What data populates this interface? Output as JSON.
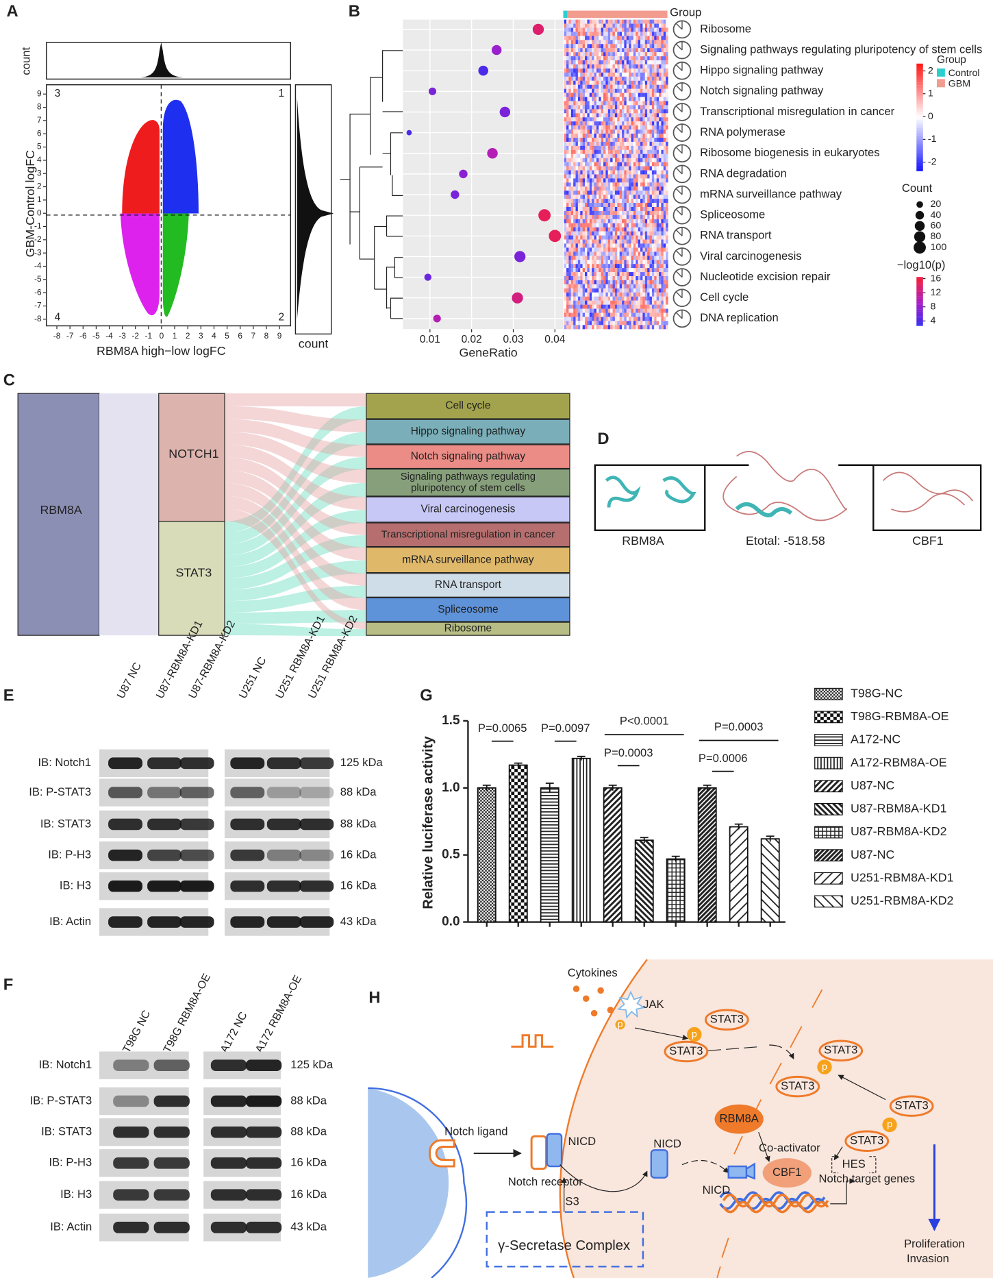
{
  "figure": {
    "panel_labels": [
      "A",
      "B",
      "C",
      "D",
      "E",
      "F",
      "G",
      "H"
    ]
  },
  "panel_a": {
    "type": "scatter",
    "xlabel": "RBM8A high−low logFC",
    "ylabel": "GBM-Control logFC",
    "top_hist_label": "count",
    "right_hist_label": "count",
    "quadrants": [
      "3",
      "1",
      "4",
      "2"
    ],
    "xlim": [
      -8.8,
      9.85
    ],
    "ylim": [
      -8.5,
      9.7
    ],
    "xticks": [
      -8,
      -7,
      -6,
      -5,
      -4,
      -3,
      -2,
      -1,
      0,
      1,
      2,
      3,
      4,
      5,
      6,
      7,
      8,
      9
    ],
    "yticks": [
      -8,
      -7,
      -6,
      -5,
      -4,
      -3,
      -2,
      -1,
      0,
      1,
      2,
      3,
      4,
      5,
      6,
      7,
      8,
      9
    ]
  },
  "panel_b": {
    "type": "scatter",
    "group_bar_label": "Group",
    "pathways": [
      "Ribosome",
      "Signaling pathways regulating pluripotency of stem cells",
      "Hippo signaling pathway",
      "Notch signaling pathway",
      "Transcriptional misregulation in cancer",
      "RNA polymerase",
      "Ribosome biogenesis in eukaryotes",
      "RNA degradation",
      "mRNA surveillance pathway",
      "Spliceosome",
      "RNA transport",
      "Viral carcinogenesis",
      "Nucleotide excision repair",
      "Cell cycle",
      "DNA replication"
    ],
    "gene_ratio": [
      0.036,
      0.026,
      0.0228,
      0.0106,
      0.028,
      0.005,
      0.025,
      0.018,
      0.016,
      0.0375,
      0.04,
      0.0316,
      0.0095,
      0.031,
      0.0117
    ],
    "counts": [
      80,
      60,
      60,
      30,
      70,
      10,
      70,
      40,
      40,
      100,
      100,
      80,
      25,
      80,
      30
    ],
    "neg_log10_p": [
      14,
      8,
      3,
      6,
      6,
      3,
      10,
      7,
      6,
      15,
      15,
      6,
      5,
      13,
      10
    ],
    "xlim": [
      0.0035,
      0.042
    ],
    "xticks": [
      0.01,
      0.02,
      0.03,
      0.04
    ],
    "xlabel": "GeneRatio",
    "legend": {
      "group_title": "Group",
      "groups": [
        {
          "name": "Control",
          "color": "#2ccfcf"
        },
        {
          "name": "GBM",
          "color": "#f29b8f"
        }
      ],
      "heat_ticks": [
        2,
        1,
        0,
        -1,
        -2
      ],
      "count_title": "Count",
      "count_ticks": [
        20,
        40,
        60,
        80,
        100
      ],
      "p_title": "−log10(p)",
      "p_ticks": [
        16,
        12,
        8,
        4
      ]
    }
  },
  "panel_c": {
    "source": "RBM8A",
    "genes": [
      "NOTCH1",
      "STAT3"
    ],
    "pathways": [
      {
        "name": "Cell cycle",
        "color": "#a3a34d"
      },
      {
        "name": "Hippo signaling pathway",
        "color": "#7aafb9"
      },
      {
        "name": "Notch signaling pathway",
        "color": "#eb8c86"
      },
      {
        "name": "Signaling pathways regulating pluripotency of stem cells",
        "color": "#87a07b"
      },
      {
        "name": "Viral carcinogenesis",
        "color": "#c7c8f5"
      },
      {
        "name": "Transcriptional misregulation in cancer",
        "color": "#b66e6e"
      },
      {
        "name": "mRNA surveillance pathway",
        "color": "#dfb86a"
      },
      {
        "name": "RNA transport",
        "color": "#cfdde8"
      },
      {
        "name": "Spliceosome",
        "color": "#5e92d9"
      },
      {
        "name": "Ribosome",
        "color": "#b7bd84"
      }
    ]
  },
  "panel_d": {
    "labels": [
      "RBM8A",
      "Etotal: -518.58",
      "CBF1"
    ]
  },
  "panel_e": {
    "lanes": [
      "U87 NC",
      "U87-RBM8A-KD1",
      "U87-RBM8A-KD2",
      "U251 NC",
      "U251 RBM8A-KD1",
      "U251 RBM8A-KD2"
    ],
    "rows": [
      {
        "label": "IB: Notch1",
        "size": "125 kDa"
      },
      {
        "label": "IB: P-STAT3",
        "size": "88 kDa"
      },
      {
        "label": "IB: STAT3",
        "size": "88 kDa"
      },
      {
        "label": "IB: P-H3",
        "size": "16 kDa"
      },
      {
        "label": "IB: H3",
        "size": "16 kDa"
      },
      {
        "label": "IB: Actin",
        "size": "43 kDa"
      }
    ]
  },
  "panel_f": {
    "lanes": [
      "T98G NC",
      "T98G RBM8A-OE",
      "A172 NC",
      "A172 RBM8A-OE"
    ],
    "rows": [
      {
        "label": "IB: Notch1",
        "size": "125 kDa"
      },
      {
        "label": "IB: P-STAT3",
        "size": "88 kDa"
      },
      {
        "label": "IB: STAT3",
        "size": "88 kDa"
      },
      {
        "label": "IB: P-H3",
        "size": "16 kDa"
      },
      {
        "label": "IB: H3",
        "size": "16 kDa"
      },
      {
        "label": "IB: Actin",
        "size": "43 kDa"
      }
    ]
  },
  "chart_data": {
    "type": "bar",
    "ylabel": "Relative luciferase activity",
    "categories": [
      "T98G-NC",
      "T98G-RBM8A-OE",
      "A172-NC",
      "A172-RBM8A-OE",
      "U87-NC",
      "U87-RBM8A-KD1",
      "U87-RBM8A-KD2",
      "U87-NC",
      "U251-RBM8A-KD1",
      "U251-RBM8A-KD2"
    ],
    "values": [
      1.0,
      1.17,
      1.0,
      1.22,
      1.0,
      0.61,
      0.47,
      1.0,
      0.71,
      0.62
    ],
    "errors": [
      0.02,
      0.015,
      0.035,
      0.015,
      0.02,
      0.02,
      0.02,
      0.02,
      0.02,
      0.02
    ],
    "ylim": [
      0,
      1.5
    ],
    "yticks": [
      {
        "value": 0,
        "label": "0.0"
      },
      0.5,
      {
        "value": 1,
        "label": "1.0"
      },
      1.5
    ],
    "annotations": [
      {
        "text": "P=0.0065",
        "from": 0,
        "to": 1
      },
      {
        "text": "P=0.0097",
        "from": 2,
        "to": 3
      },
      {
        "text": "P=0.0003",
        "from": 4,
        "to": 5
      },
      {
        "text": "P<0.0001",
        "from": 4,
        "to": 6
      },
      {
        "text": "P=0.0006",
        "from": 7,
        "to": 8
      },
      {
        "text": "P=0.0003",
        "from": 7,
        "to": 9
      }
    ]
  },
  "panel_h": {
    "labels": [
      "Cytokines",
      "JAK",
      "p",
      "STAT3",
      "p",
      "STAT3",
      "STAT3",
      "p",
      "STAT3",
      "STAT3",
      "p",
      "STAT3",
      "RBM8A",
      "Co-activator",
      "CBF1",
      "HES",
      "Notch target genes",
      "NICD",
      "NICD",
      "NICD",
      "Notch ligand",
      "Notch receptor",
      "S3",
      "γ-Secretase Complex",
      "Proliferation",
      "Invasion"
    ]
  }
}
